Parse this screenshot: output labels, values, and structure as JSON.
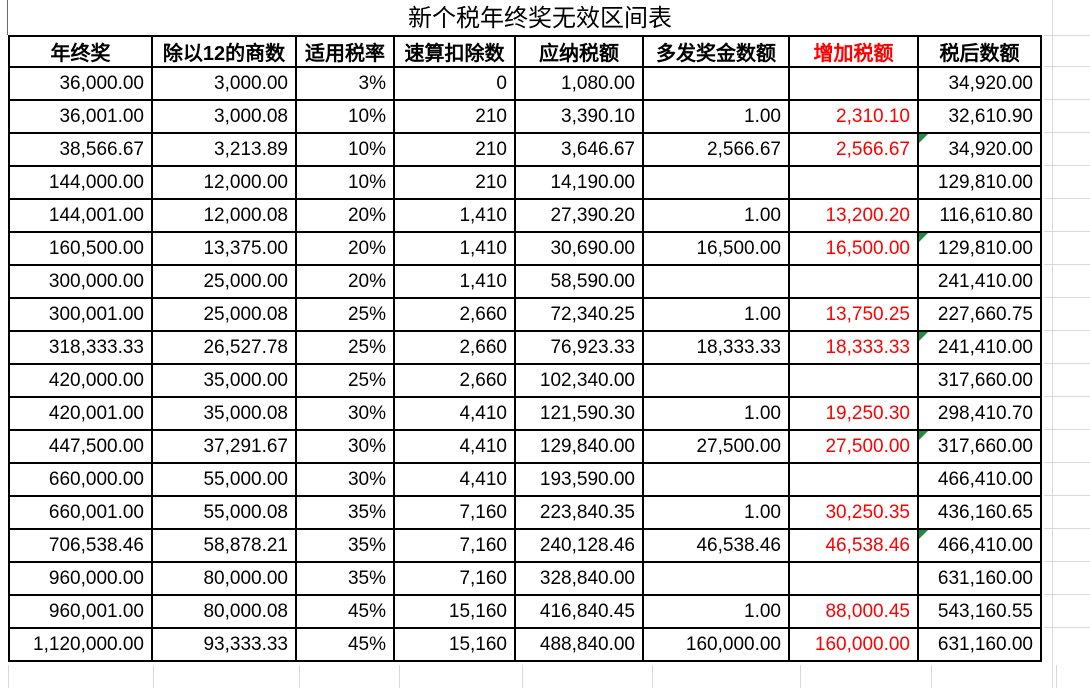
{
  "title": "新个税年终奖无效区间表",
  "colors": {
    "accent_red": "#FF0000",
    "marker_green": "#1E8E3E",
    "grid_black": "#000000",
    "faint_gridline_gray": "#D9D9D9"
  },
  "table": {
    "columns": [
      "年终奖",
      "除以12的商数",
      "适用税率",
      "速算扣除数",
      "应纳税额",
      "多发奖金数额",
      "增加税额",
      "税后数额"
    ],
    "red_header_index": 6,
    "red_column_index": 6,
    "marker_icon": "green-corner-triangle",
    "rows": [
      {
        "cells": [
          "36,000.00",
          "3,000.00",
          "3%",
          "0",
          "1,080.00",
          "",
          "",
          "34,920.00"
        ],
        "marker": false
      },
      {
        "cells": [
          "36,001.00",
          "3,000.08",
          "10%",
          "210",
          "3,390.10",
          "1.00",
          "2,310.10",
          "32,610.90"
        ],
        "marker": false
      },
      {
        "cells": [
          "38,566.67",
          "3,213.89",
          "10%",
          "210",
          "3,646.67",
          "2,566.67",
          "2,566.67",
          "34,920.00"
        ],
        "marker": true
      },
      {
        "cells": [
          "144,000.00",
          "12,000.00",
          "10%",
          "210",
          "14,190.00",
          "",
          "",
          "129,810.00"
        ],
        "marker": false
      },
      {
        "cells": [
          "144,001.00",
          "12,000.08",
          "20%",
          "1,410",
          "27,390.20",
          "1.00",
          "13,200.20",
          "116,610.80"
        ],
        "marker": false
      },
      {
        "cells": [
          "160,500.00",
          "13,375.00",
          "20%",
          "1,410",
          "30,690.00",
          "16,500.00",
          "16,500.00",
          "129,810.00"
        ],
        "marker": true
      },
      {
        "cells": [
          "300,000.00",
          "25,000.00",
          "20%",
          "1,410",
          "58,590.00",
          "",
          "",
          "241,410.00"
        ],
        "marker": false
      },
      {
        "cells": [
          "300,001.00",
          "25,000.08",
          "25%",
          "2,660",
          "72,340.25",
          "1.00",
          "13,750.25",
          "227,660.75"
        ],
        "marker": false
      },
      {
        "cells": [
          "318,333.33",
          "26,527.78",
          "25%",
          "2,660",
          "76,923.33",
          "18,333.33",
          "18,333.33",
          "241,410.00"
        ],
        "marker": true
      },
      {
        "cells": [
          "420,000.00",
          "35,000.00",
          "25%",
          "2,660",
          "102,340.00",
          "",
          "",
          "317,660.00"
        ],
        "marker": false
      },
      {
        "cells": [
          "420,001.00",
          "35,000.08",
          "30%",
          "4,410",
          "121,590.30",
          "1.00",
          "19,250.30",
          "298,410.70"
        ],
        "marker": false
      },
      {
        "cells": [
          "447,500.00",
          "37,291.67",
          "30%",
          "4,410",
          "129,840.00",
          "27,500.00",
          "27,500.00",
          "317,660.00"
        ],
        "marker": true
      },
      {
        "cells": [
          "660,000.00",
          "55,000.00",
          "30%",
          "4,410",
          "193,590.00",
          "",
          "",
          "466,410.00"
        ],
        "marker": false
      },
      {
        "cells": [
          "660,001.00",
          "55,000.08",
          "35%",
          "7,160",
          "223,840.35",
          "1.00",
          "30,250.35",
          "436,160.65"
        ],
        "marker": false
      },
      {
        "cells": [
          "706,538.46",
          "58,878.21",
          "35%",
          "7,160",
          "240,128.46",
          "46,538.46",
          "46,538.46",
          "466,410.00"
        ],
        "marker": true
      },
      {
        "cells": [
          "960,000.00",
          "80,000.00",
          "35%",
          "7,160",
          "328,840.00",
          "",
          "",
          "631,160.00"
        ],
        "marker": false
      },
      {
        "cells": [
          "960,001.00",
          "80,000.08",
          "45%",
          "15,160",
          "416,840.45",
          "1.00",
          "88,000.45",
          "543,160.55"
        ],
        "marker": false
      },
      {
        "cells": [
          "1,120,000.00",
          "93,333.33",
          "45%",
          "15,160",
          "488,840.00",
          "160,000.00",
          "160,000.00",
          "631,160.00"
        ],
        "marker": false
      }
    ]
  }
}
